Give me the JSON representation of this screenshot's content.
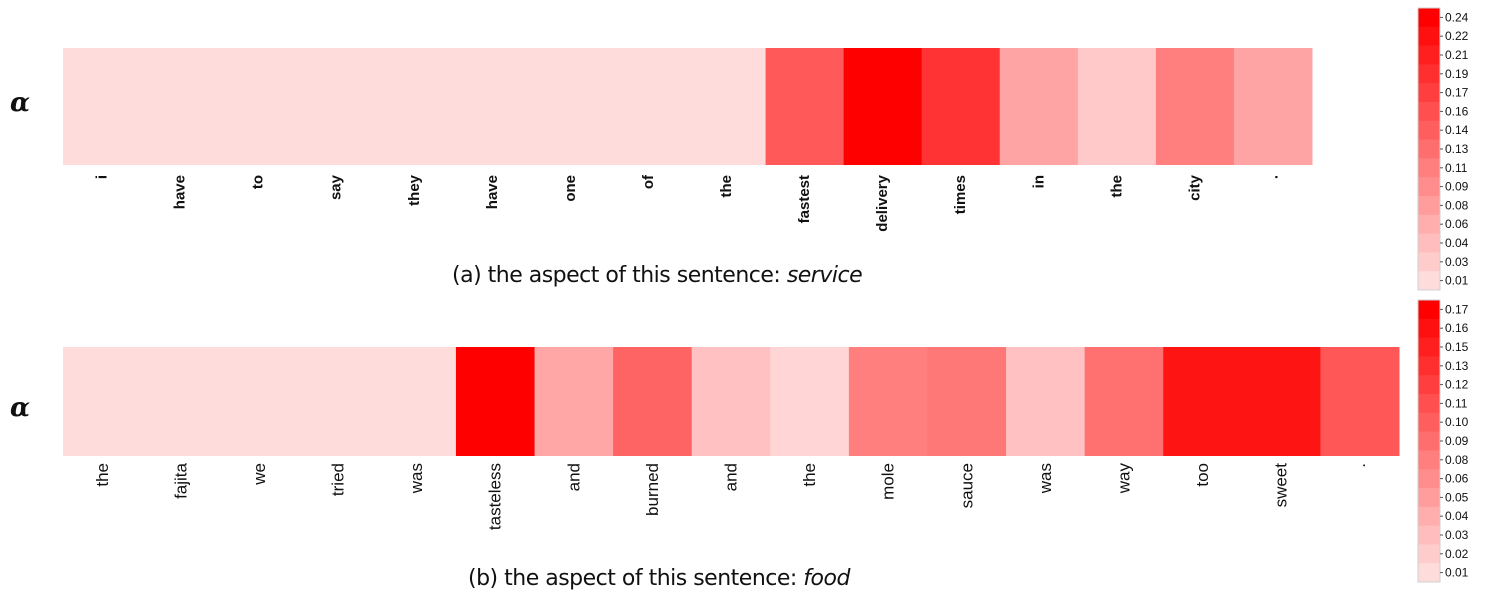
{
  "chart_data": [
    {
      "type": "heatmap",
      "ylabel": "α",
      "caption_prefix": "(a) the aspect of this sentence: ",
      "aspect": "service",
      "tokens": [
        "i",
        "have",
        "to",
        "say",
        "they",
        "have",
        "one",
        "of",
        "the",
        "fastest",
        "delivery",
        "times",
        "in",
        "the",
        "city",
        "."
      ],
      "values": [
        0.01,
        0.01,
        0.01,
        0.01,
        0.01,
        0.01,
        0.01,
        0.01,
        0.01,
        0.15,
        0.245,
        0.19,
        0.07,
        0.03,
        0.11,
        0.07
      ],
      "colorbar_ticks": [
        "0.24",
        "0.22",
        "0.21",
        "0.19",
        "0.17",
        "0.16",
        "0.14",
        "0.13",
        "0.11",
        "0.09",
        "0.08",
        "0.06",
        "0.04",
        "0.03",
        "0.01"
      ],
      "colorbar_range": [
        0.01,
        0.245
      ],
      "colors": {
        "low": "#ffdcdc",
        "high": "#ff0000"
      }
    },
    {
      "type": "heatmap",
      "ylabel": "α",
      "caption_prefix": "(b) the aspect of this sentence: ",
      "aspect": "food",
      "tokens": [
        "the",
        "fajita",
        "we",
        "tried",
        "was",
        "tasteless",
        "and",
        "burned",
        "and",
        "the",
        "mole",
        "sauce",
        "was",
        "way",
        "too",
        "sweet",
        "."
      ],
      "values": [
        0.01,
        0.01,
        0.01,
        0.01,
        0.01,
        0.175,
        0.05,
        0.1,
        0.03,
        0.015,
        0.08,
        0.085,
        0.03,
        0.09,
        0.16,
        0.16,
        0.11
      ],
      "colorbar_ticks": [
        "0.17",
        "0.16",
        "0.15",
        "0.13",
        "0.12",
        "0.11",
        "0.10",
        "0.09",
        "0.08",
        "0.06",
        "0.05",
        "0.04",
        "0.03",
        "0.02",
        "0.01"
      ],
      "colorbar_range": [
        0.01,
        0.175
      ],
      "colors": {
        "low": "#ffdcdc",
        "high": "#ff0000"
      }
    }
  ]
}
